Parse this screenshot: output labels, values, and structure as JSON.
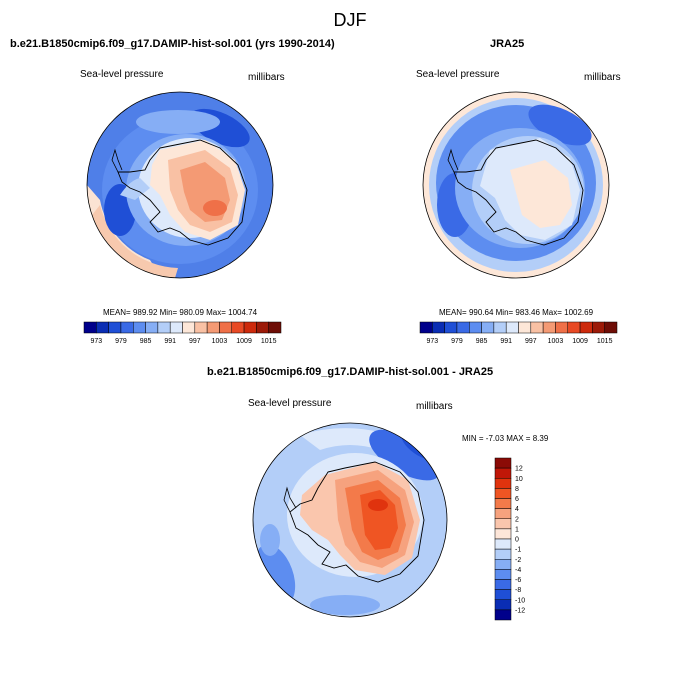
{
  "figure": {
    "season": "DJF"
  },
  "panels": {
    "model": {
      "title": "b.e21.B1850cmip6.f09_g17.DAMIP-hist-sol.001 (yrs 1990-2014)",
      "field_label": "Sea-level pressure",
      "units": "millibars",
      "stats": "MEAN= 989.92  Min= 980.09  Max= 1004.74"
    },
    "obs": {
      "title": "JRA25",
      "field_label": "Sea-level pressure",
      "units": "millibars",
      "stats": "MEAN= 990.64  Min= 983.46  Max= 1002.69"
    },
    "diff": {
      "title": "b.e21.B1850cmip6.f09_g17.DAMIP-hist-sol.001 - JRA25",
      "field_label": "Sea-level pressure",
      "units": "millibars",
      "stats": "MIN =  -7.03 MAX =   8.39"
    }
  },
  "colorbars": {
    "abs": {
      "labels": [
        "973",
        "979",
        "985",
        "991",
        "997",
        "1003",
        "1009",
        "1015"
      ],
      "colors": [
        "#00008b",
        "#0a2db4",
        "#1f4fd6",
        "#3a6ae6",
        "#5d8df0",
        "#86aef5",
        "#b3cef8",
        "#dde9fb",
        "#fde7d8",
        "#f9c1a4",
        "#f49a74",
        "#ef7048",
        "#e84a25",
        "#cd2a0c",
        "#9c1a08",
        "#6e0d06"
      ]
    },
    "diff": {
      "labels": [
        "12",
        "10",
        "8",
        "6",
        "4",
        "2",
        "1",
        "0",
        "-1",
        "-2",
        "-4",
        "-6",
        "-8",
        "-10",
        "-12"
      ],
      "colors": [
        "#8b0b06",
        "#c01708",
        "#e0330e",
        "#ef5523",
        "#f37a4a",
        "#f6a27e",
        "#fac6ad",
        "#fde6d9",
        "#dde9fb",
        "#b3cef8",
        "#86aef5",
        "#5d8df0",
        "#3a6ae6",
        "#1f4fd6",
        "#0a2db4",
        "#00008b"
      ]
    }
  }
}
